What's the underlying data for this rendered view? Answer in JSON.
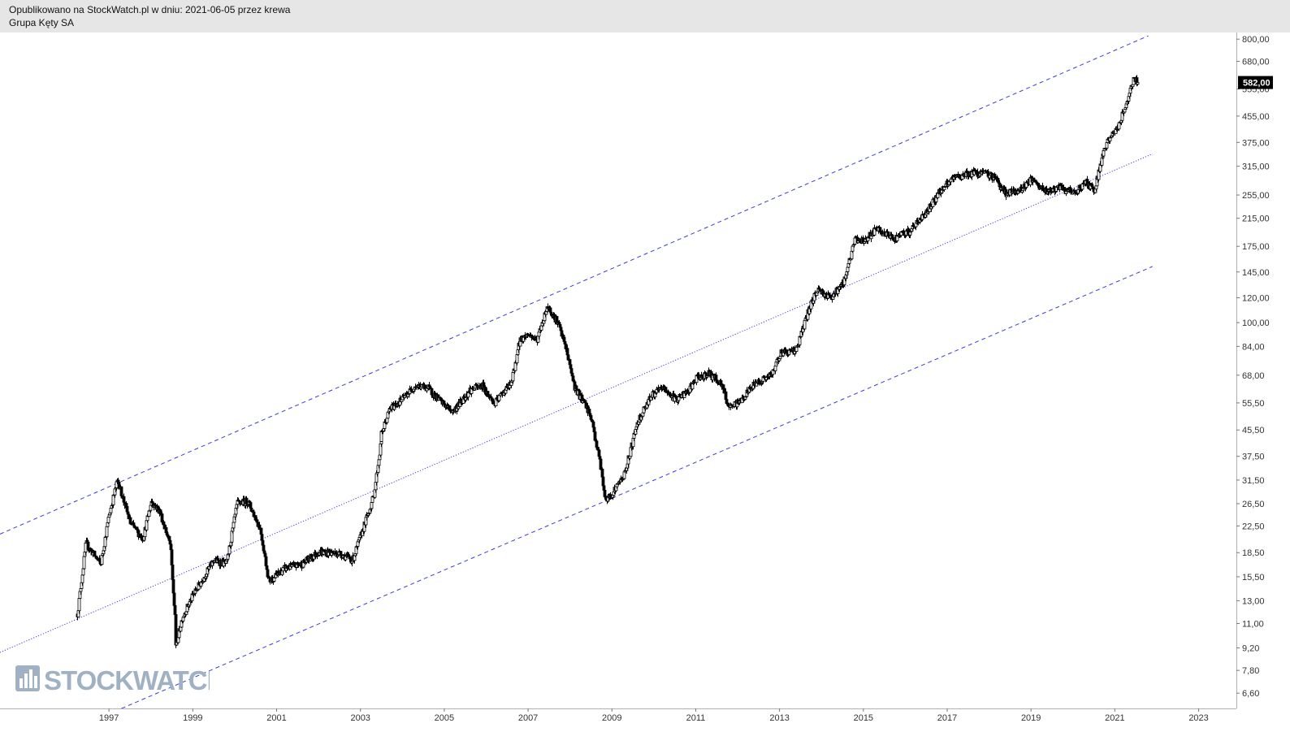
{
  "header": {
    "published": "Opublikowano na StockWatch.pl w dniu: 2021-06-05 przez krewa",
    "instrument": "Grupa Kęty SA"
  },
  "watermark": {
    "text": "STOCKWATCH",
    "icon": "bar-chart-icon",
    "color": "#9fb1c3"
  },
  "colors": {
    "candle": "#000000",
    "channel": "#3b3bdc",
    "axis": "#b0b0b0",
    "last_price_bg": "#000000"
  },
  "chart_data": {
    "type": "candlestick",
    "title": "",
    "scale": "log",
    "x_range": [
      1994.4,
      2023.9
    ],
    "y_range": [
      5.9,
      840
    ],
    "x_ticks": [
      "1997",
      "1999",
      "2001",
      "2003",
      "2005",
      "2007",
      "2009",
      "2011",
      "2013",
      "2015",
      "2017",
      "2019",
      "2021",
      "2023"
    ],
    "y_ticks": [
      "800,00",
      "680,00",
      "555,00",
      "455,00",
      "375,00",
      "315,00",
      "255,00",
      "215,00",
      "175,00",
      "145,00",
      "120,00",
      "100,00",
      "84,00",
      "68,00",
      "55,50",
      "45,50",
      "37,50",
      "31,50",
      "26,50",
      "22,50",
      "18,50",
      "15,50",
      "13,00",
      "11,00",
      "9,20",
      "7,80",
      "6,60"
    ],
    "last_price": "582,00",
    "channel_lines": [
      {
        "name": "",
        "style": "dashed",
        "start": [
          1994.4,
          21.2
        ],
        "end": [
          2021.8,
          820
        ]
      },
      {
        "name": "",
        "style": "dotted",
        "start": [
          1994.4,
          8.9
        ],
        "end": [
          2021.9,
          345
        ]
      },
      {
        "name": "",
        "style": "dashed",
        "start": [
          1997.3,
          5.9
        ],
        "end": [
          2021.9,
          151
        ]
      }
    ],
    "price_path": [
      [
        1996.25,
        11.8
      ],
      [
        1996.45,
        19.8
      ],
      [
        1996.8,
        17.0
      ],
      [
        1997.0,
        24.5
      ],
      [
        1997.2,
        31.5
      ],
      [
        1997.5,
        23.0
      ],
      [
        1997.8,
        20.5
      ],
      [
        1998.0,
        27.0
      ],
      [
        1998.2,
        25.0
      ],
      [
        1998.45,
        19.5
      ],
      [
        1998.6,
        9.3
      ],
      [
        1998.75,
        11.5
      ],
      [
        1999.0,
        13.5
      ],
      [
        1999.5,
        17.5
      ],
      [
        1999.8,
        17.0
      ],
      [
        2000.05,
        26.5
      ],
      [
        2000.3,
        27.0
      ],
      [
        2000.6,
        22.0
      ],
      [
        2000.8,
        15.0
      ],
      [
        2001.2,
        16.5
      ],
      [
        2001.6,
        17.0
      ],
      [
        2002.0,
        18.6
      ],
      [
        2002.5,
        18.4
      ],
      [
        2002.8,
        17.5
      ],
      [
        2003.0,
        21.0
      ],
      [
        2003.3,
        28.0
      ],
      [
        2003.5,
        44.0
      ],
      [
        2003.7,
        53.0
      ],
      [
        2004.0,
        57.0
      ],
      [
        2004.3,
        63.0
      ],
      [
        2004.6,
        62.0
      ],
      [
        2004.9,
        56.0
      ],
      [
        2005.2,
        52.0
      ],
      [
        2005.6,
        61.0
      ],
      [
        2005.9,
        63.0
      ],
      [
        2006.2,
        55.0
      ],
      [
        2006.4,
        60.0
      ],
      [
        2006.6,
        64.0
      ],
      [
        2006.8,
        88.0
      ],
      [
        2007.0,
        92.0
      ],
      [
        2007.2,
        88.0
      ],
      [
        2007.45,
        113.0
      ],
      [
        2007.7,
        100.0
      ],
      [
        2007.9,
        82.0
      ],
      [
        2008.1,
        62.0
      ],
      [
        2008.3,
        56.0
      ],
      [
        2008.5,
        50.0
      ],
      [
        2008.7,
        37.0
      ],
      [
        2008.85,
        27.0
      ],
      [
        2009.0,
        28.5
      ],
      [
        2009.3,
        33.0
      ],
      [
        2009.6,
        48.0
      ],
      [
        2009.9,
        58.0
      ],
      [
        2010.2,
        62.0
      ],
      [
        2010.5,
        57.0
      ],
      [
        2010.8,
        60.0
      ],
      [
        2011.0,
        66.0
      ],
      [
        2011.3,
        69.0
      ],
      [
        2011.6,
        64.0
      ],
      [
        2011.8,
        53.0
      ],
      [
        2012.1,
        57.0
      ],
      [
        2012.4,
        64.0
      ],
      [
        2012.8,
        68.0
      ],
      [
        2013.0,
        80.0
      ],
      [
        2013.4,
        82.0
      ],
      [
        2013.7,
        110.0
      ],
      [
        2013.9,
        128.0
      ],
      [
        2014.2,
        120.0
      ],
      [
        2014.5,
        132.0
      ],
      [
        2014.8,
        185.0
      ],
      [
        2015.0,
        182.0
      ],
      [
        2015.3,
        198.0
      ],
      [
        2015.7,
        185.0
      ],
      [
        2016.1,
        195.0
      ],
      [
        2016.5,
        225.0
      ],
      [
        2016.8,
        260.0
      ],
      [
        2017.1,
        285.0
      ],
      [
        2017.4,
        297.0
      ],
      [
        2017.8,
        300.0
      ],
      [
        2018.1,
        292.0
      ],
      [
        2018.4,
        258.0
      ],
      [
        2018.7,
        262.0
      ],
      [
        2019.0,
        285.0
      ],
      [
        2019.3,
        262.0
      ],
      [
        2019.7,
        268.0
      ],
      [
        2020.0,
        258.0
      ],
      [
        2020.3,
        280.0
      ],
      [
        2020.5,
        265.0
      ],
      [
        2020.7,
        345.0
      ],
      [
        2020.9,
        392.0
      ],
      [
        2021.1,
        425.0
      ],
      [
        2021.3,
        515.0
      ],
      [
        2021.45,
        600.0
      ],
      [
        2021.55,
        582.0
      ]
    ]
  }
}
